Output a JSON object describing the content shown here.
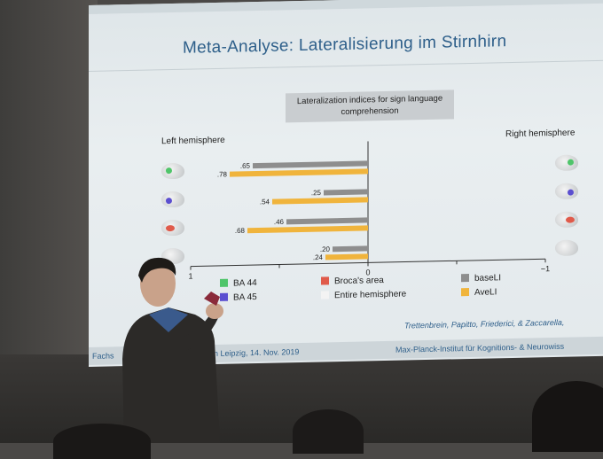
{
  "slide": {
    "title": "Meta-Analyse: Lateralisierung im Stirnhirn",
    "left_hemisphere": "Left hemisphere",
    "right_hemisphere": "Right hemisphere",
    "citation": "Trettenbrein, Papitto, Friederici, & Zaccarella,",
    "footer_left": "Fachs",
    "footer_mid": "ein Leipzig, 14. Nov. 2019",
    "footer_right": "Max-Planck-Institut für Kognitions- & Neurowiss"
  },
  "chart_data": {
    "type": "bar",
    "title": "Lateralization indices for sign language comprehension",
    "orientation": "horizontal",
    "categories": [
      "BA 44",
      "BA 45",
      "Broca's area",
      "Entire hemisphere"
    ],
    "series": [
      {
        "name": "baseLI",
        "values": [
          0.65,
          0.25,
          0.46,
          0.2
        ],
        "labels": [
          ".65",
          ".25",
          ".46",
          ".20"
        ],
        "color": "#8e8e8e"
      },
      {
        "name": "AveLI",
        "values": [
          0.78,
          0.54,
          0.68,
          0.24
        ],
        "labels": [
          ".78",
          ".54",
          ".68",
          ".24"
        ],
        "color": "#f0b43c"
      }
    ],
    "xlim": [
      1,
      -1
    ],
    "ticks": [
      "1",
      "0",
      "−1"
    ],
    "category_colors": [
      "#4fc56a",
      "#5b4fd0",
      "#e05a4a",
      "#eeeeee"
    ]
  },
  "legend": {
    "ba44": "BA 44",
    "ba45": "BA 45",
    "broca": "Broca's area",
    "entire": "Entire hemisphere",
    "baseli": "baseLI",
    "aveli": "AveLI"
  }
}
